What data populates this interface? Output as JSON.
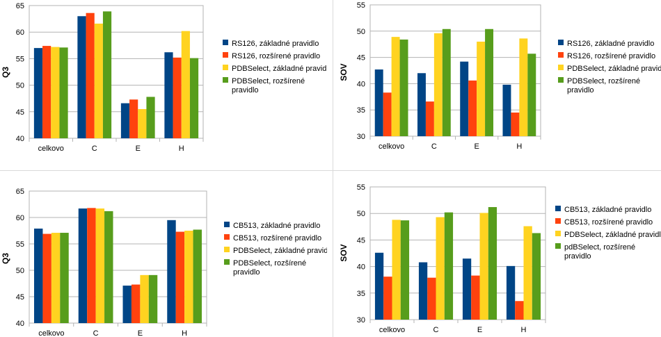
{
  "chart_data": [
    {
      "type": "bar",
      "title": "",
      "xlabel": "",
      "ylabel": "Q3",
      "ylim": [
        40,
        65
      ],
      "yticks": [
        40,
        45,
        50,
        55,
        60,
        65
      ],
      "grid": true,
      "legend": "right",
      "categories": [
        "celkovo",
        "C",
        "E",
        "H"
      ],
      "series": [
        {
          "name": "RS126, základné pravidlo",
          "color": "#004586",
          "values": [
            57.0,
            63.0,
            46.6,
            56.2
          ]
        },
        {
          "name": "RS126, rozšírené pravidlo",
          "color": "#ff420e",
          "values": [
            57.4,
            63.6,
            47.3,
            55.2
          ]
        },
        {
          "name": "PDBSelect, základné pravidlo",
          "color": "#ffd320",
          "values": [
            57.2,
            61.6,
            45.5,
            60.2
          ]
        },
        {
          "name": "PDBSelect, rozšírené pravidlo",
          "color": "#579d1c",
          "values": [
            57.1,
            63.9,
            47.8,
            55.1
          ]
        }
      ]
    },
    {
      "type": "bar",
      "title": "",
      "xlabel": "",
      "ylabel": "SOV",
      "ylim": [
        30,
        55
      ],
      "yticks": [
        30,
        35,
        40,
        45,
        50,
        55
      ],
      "grid": true,
      "legend": "right",
      "categories": [
        "celkovo",
        "C",
        "E",
        "H"
      ],
      "series": [
        {
          "name": "RS126, základné pravidlo",
          "color": "#004586",
          "values": [
            42.7,
            42.0,
            44.2,
            39.8
          ]
        },
        {
          "name": "RS126, rozšírené pravidlo",
          "color": "#ff420e",
          "values": [
            38.3,
            36.6,
            40.6,
            34.5
          ]
        },
        {
          "name": "PDBSelect, základné pravidlo",
          "color": "#ffd320",
          "values": [
            48.9,
            49.6,
            48.0,
            48.6
          ]
        },
        {
          "name": "PDBSelect, rozšírené pravidlo",
          "color": "#579d1c",
          "values": [
            48.4,
            50.4,
            50.4,
            45.7
          ]
        }
      ]
    },
    {
      "type": "bar",
      "title": "",
      "xlabel": "",
      "ylabel": "Q3",
      "ylim": [
        40,
        65
      ],
      "yticks": [
        40,
        45,
        50,
        55,
        60,
        65
      ],
      "grid": true,
      "legend": "right",
      "categories": [
        "celkovo",
        "C",
        "E",
        "H"
      ],
      "series": [
        {
          "name": "CB513, základné pravidlo",
          "color": "#004586",
          "values": [
            57.9,
            61.7,
            47.1,
            59.5
          ]
        },
        {
          "name": "CB513, rozšírené pravidlo",
          "color": "#ff420e",
          "values": [
            56.9,
            61.8,
            47.3,
            57.3
          ]
        },
        {
          "name": "PDBSelect, základné pravidlo",
          "color": "#ffd320",
          "values": [
            57.1,
            61.7,
            49.1,
            57.5
          ]
        },
        {
          "name": "PDBSelect, rozšírené pravidlo",
          "color": "#579d1c",
          "values": [
            57.1,
            61.2,
            49.1,
            57.7
          ]
        }
      ]
    },
    {
      "type": "bar",
      "title": "",
      "xlabel": "",
      "ylabel": "SOV",
      "ylim": [
        30,
        55
      ],
      "yticks": [
        30,
        35,
        40,
        45,
        50,
        55
      ],
      "grid": true,
      "legend": "right",
      "categories": [
        "celkovo",
        "C",
        "E",
        "H"
      ],
      "series": [
        {
          "name": "CB513, základné pravidlo",
          "color": "#004586",
          "values": [
            42.6,
            40.8,
            41.5,
            40.1
          ]
        },
        {
          "name": "CB513, rozšírené pravidlo",
          "color": "#ff420e",
          "values": [
            38.1,
            37.9,
            38.3,
            33.5
          ]
        },
        {
          "name": "PDBSelect, základné pravidlo",
          "color": "#ffd320",
          "values": [
            48.8,
            49.3,
            50.1,
            47.6
          ]
        },
        {
          "name": "pdBSelect, rozšírené pravidlo",
          "color": "#579d1c",
          "values": [
            48.7,
            50.2,
            51.2,
            46.3
          ]
        }
      ]
    }
  ]
}
